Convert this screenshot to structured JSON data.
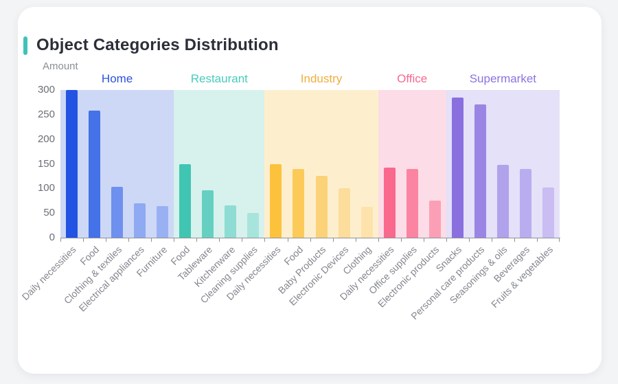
{
  "card": {
    "title": "Object Categories Distribution",
    "accent_color": "#3fc3b6"
  },
  "chart_data": {
    "type": "bar",
    "title": "Object Categories Distribution",
    "xlabel": "",
    "ylabel": "Amount",
    "ylim": [
      0,
      300
    ],
    "yticks": [
      0,
      50,
      100,
      150,
      200,
      250,
      300
    ],
    "grid": false,
    "legend_position": "none",
    "axis_color": "#8f9196",
    "groups": [
      {
        "name": "Home",
        "label_color": "#2b52df",
        "band_color": "#cdd7f6",
        "bars": [
          {
            "label": "Daily necessities",
            "value": 300,
            "color": "#2253e3"
          },
          {
            "label": "Food",
            "value": 258,
            "color": "#4472e8"
          },
          {
            "label": "Clothing & textiles",
            "value": 103,
            "color": "#6e90ee"
          },
          {
            "label": "Electrical appliances",
            "value": 70,
            "color": "#8fa9f2"
          },
          {
            "label": "Furniture",
            "value": 64,
            "color": "#99b1f3"
          }
        ]
      },
      {
        "name": "Restaurant",
        "label_color": "#47cbbc",
        "band_color": "#d7f1ec",
        "bars": [
          {
            "label": "Food",
            "value": 149,
            "color": "#40c5b3"
          },
          {
            "label": "Tableware",
            "value": 97,
            "color": "#65d0c2"
          },
          {
            "label": "Kitchenware",
            "value": 65,
            "color": "#8edcd3"
          },
          {
            "label": "Cleaning supplies",
            "value": 50,
            "color": "#a7e4dc"
          }
        ]
      },
      {
        "name": "Industry",
        "label_color": "#efae3e",
        "band_color": "#fdefce",
        "bars": [
          {
            "label": "Daily necessities",
            "value": 150,
            "color": "#fcc23c"
          },
          {
            "label": "Food",
            "value": 139,
            "color": "#fbca58"
          },
          {
            "label": "Baby Products",
            "value": 126,
            "color": "#fcd278"
          },
          {
            "label": "Electronic Devices",
            "value": 100,
            "color": "#fcdd9b"
          },
          {
            "label": "Clothing",
            "value": 63,
            "color": "#fde3ab"
          }
        ]
      },
      {
        "name": "Office",
        "label_color": "#f66990",
        "band_color": "#fcdce7",
        "bars": [
          {
            "label": "Daily necessities",
            "value": 142,
            "color": "#f9688d"
          },
          {
            "label": "Office supplies",
            "value": 139,
            "color": "#fa84a1"
          },
          {
            "label": "Electronic products",
            "value": 75,
            "color": "#fb9fb7"
          }
        ]
      },
      {
        "name": "Supermarket",
        "label_color": "#8c73df",
        "band_color": "#e4e1f8",
        "bars": [
          {
            "label": "Snacks",
            "value": 285,
            "color": "#8a70df"
          },
          {
            "label": "Personal care products",
            "value": 271,
            "color": "#9b85e4"
          },
          {
            "label": "Seasonings & oils",
            "value": 148,
            "color": "#b1a2ec"
          },
          {
            "label": "Beverages",
            "value": 140,
            "color": "#baadef"
          },
          {
            "label": "Fruits & vegetables",
            "value": 102,
            "color": "#c9bdf3"
          }
        ]
      }
    ]
  }
}
